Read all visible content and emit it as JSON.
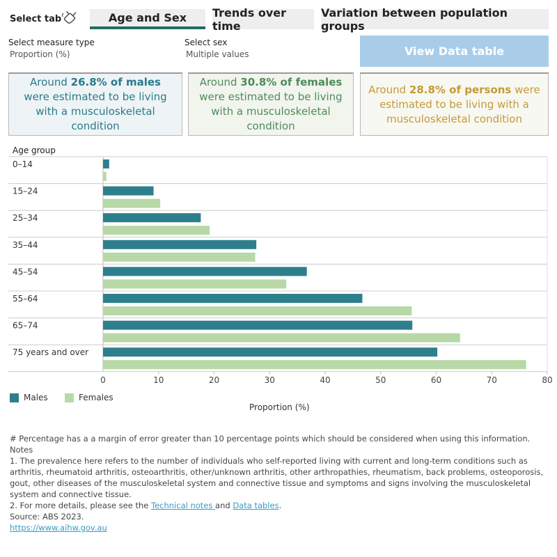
{
  "tabs": {
    "select_label": "Select tab",
    "items": [
      {
        "label": "Age and Sex",
        "active": true
      },
      {
        "label": "Trends over time",
        "active": false
      },
      {
        "label": "Variation between population groups",
        "active": false
      }
    ]
  },
  "filters": {
    "measure_label": "Select measure type",
    "measure_value": "Proportion (%)",
    "sex_label": "Select sex",
    "sex_value": "Multiple values"
  },
  "view_button": "View Data table",
  "cards": {
    "males": {
      "pre": "Around ",
      "strong": "26.8% of males",
      "post": " were estimated to be living with a musculoskeletal condition"
    },
    "females": {
      "pre": "Around ",
      "strong": "30.8% of females",
      "post": " were estimated to be living with a musculoskeletal condition"
    },
    "persons": {
      "pre": "Around ",
      "strong": "28.8% of persons",
      "post": " were estimated to be living with a musculoskeletal condition"
    }
  },
  "colors": {
    "males": "#2e7f8c",
    "females": "#b8d8a8",
    "tab_underline": "#1f6e5e",
    "button": "#a9cde9"
  },
  "chart_data": {
    "type": "bar",
    "orientation": "horizontal",
    "title": "",
    "ylabel": "Age group",
    "xlabel": "Proportion (%)",
    "xlim": [
      0,
      80
    ],
    "xticks": [
      0,
      10,
      20,
      30,
      40,
      50,
      60,
      70,
      80
    ],
    "categories": [
      "0–14",
      "15–24",
      "25–34",
      "35–44",
      "45–54",
      "55–64",
      "65–74",
      "75 years and over"
    ],
    "series": [
      {
        "name": "Males",
        "values": [
          1.1,
          9.1,
          17.6,
          27.6,
          36.7,
          46.7,
          55.7,
          60.2
        ]
      },
      {
        "name": "Females",
        "values": [
          0.6,
          10.3,
          19.2,
          27.4,
          33.0,
          55.6,
          64.3,
          76.2
        ]
      }
    ],
    "legend_position": "bottom-left",
    "grid": true
  },
  "notes": {
    "hash_note": "# Percentage has a a margin of error greater than 10 percentage points which should be considered when using this information.",
    "heading": "Notes",
    "note1": "1. The prevalence here refers to the number of individuals who self-reported living with current and long-term conditions such as arthritis, rheumatoid arthritis, osteoarthritis, other/unknown arthritis, other arthropathies, rheumatism, back problems, osteoporosis, gout, other diseases of the musculoskeletal system and connective tissue and symptoms and signs involving the musculoskeletal system and connective tissue.",
    "note2_pre": "2. For more details, please see the ",
    "link_technical": "Technical notes ",
    "note2_mid": "and ",
    "link_data": "Data tables",
    "note2_post": ".",
    "source": "Source: ABS 2023.",
    "url": "https://www.aihw.gov.au"
  }
}
